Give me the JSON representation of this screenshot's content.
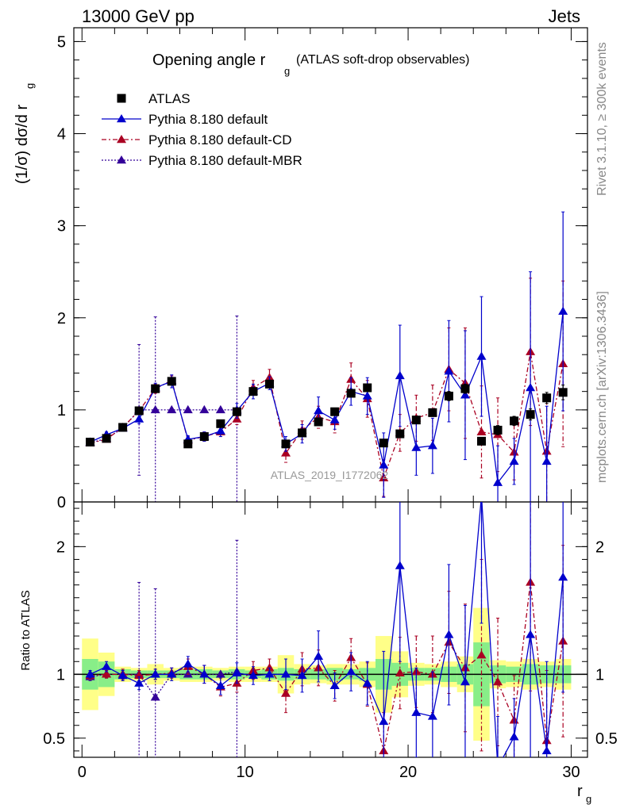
{
  "header": {
    "left": "13000 GeV pp",
    "right": "Jets"
  },
  "side_labels": {
    "rivet": "Rivet 3.1.10, ≥ 300k events",
    "mcplots": "mcplots.cern.ch [arXiv:1306.3436]"
  },
  "watermark": "ATLAS_2019_I1772062",
  "chart_data": [
    {
      "type": "scatter",
      "panel": "main",
      "title": "Opening angle r",
      "title_sub": "g",
      "title_note": "(ATLAS soft-drop observables)",
      "ylabel": "(1/σ) dσ/d r",
      "ylabel_sub": "g",
      "xlabel": "",
      "xlim": [
        -0.5,
        31
      ],
      "ylim": [
        0,
        5.15
      ],
      "x_ticks": [
        "0",
        "10",
        "20",
        "30"
      ],
      "y_ticks": [
        "0",
        "1",
        "2",
        "3",
        "4",
        "5"
      ],
      "legend": [
        {
          "label": "ATLAS",
          "marker": "square",
          "color": "#000000",
          "line": "none"
        },
        {
          "label": "Pythia 8.180 default",
          "marker": "triangle",
          "color": "#0000cc",
          "line": "solid"
        },
        {
          "label": "Pythia 8.180 default-CD",
          "marker": "triangle",
          "color": "#aa0022",
          "line": "dashdot"
        },
        {
          "label": "Pythia 8.180 default-MBR",
          "marker": "triangle",
          "color": "#330099",
          "line": "dotted"
        }
      ],
      "x": [
        0.5,
        1.5,
        2.5,
        3.5,
        4.5,
        5.5,
        6.5,
        7.5,
        8.5,
        9.5,
        10.5,
        11.5,
        12.5,
        13.5,
        14.5,
        15.5,
        16.5,
        17.5,
        18.5,
        19.5,
        20.5,
        21.5,
        22.5,
        23.5,
        24.5,
        25.5,
        26.5,
        27.5,
        28.5,
        29.5
      ],
      "series": [
        {
          "name": "ATLAS",
          "values": [
            0.65,
            0.69,
            0.81,
            0.99,
            1.23,
            1.31,
            0.63,
            0.71,
            0.85,
            0.98,
            1.2,
            1.28,
            0.63,
            0.75,
            0.87,
            0.98,
            1.18,
            1.24,
            0.64,
            0.74,
            0.89,
            0.97,
            1.15,
            1.23,
            0.66,
            0.78,
            0.88,
            0.95,
            1.13,
            1.19
          ],
          "err": [
            0.02,
            0.02,
            0.02,
            0.03,
            0.03,
            0.03,
            0.02,
            0.02,
            0.02,
            0.03,
            0.03,
            0.03,
            0.02,
            0.02,
            0.02,
            0.03,
            0.03,
            0.04,
            0.02,
            0.03,
            0.03,
            0.04,
            0.05,
            0.05,
            0.04,
            0.05,
            0.05,
            0.06,
            0.06,
            0.08
          ]
        },
        {
          "name": "Pythia 8.180 default",
          "values": [
            0.65,
            0.73,
            0.8,
            0.9,
            1.24,
            1.31,
            0.68,
            0.71,
            0.77,
            0.99,
            1.2,
            1.29,
            0.63,
            0.74,
            0.99,
            0.89,
            1.2,
            1.15,
            0.4,
            1.37,
            0.59,
            0.61,
            1.42,
            1.16,
            1.58,
            0.21,
            0.44,
            1.24,
            0.44,
            2.07
          ],
          "err": [
            0.02,
            0.03,
            0.03,
            0.05,
            0.05,
            0.07,
            0.04,
            0.05,
            0.06,
            0.08,
            0.08,
            0.07,
            0.08,
            0.1,
            0.15,
            0.1,
            0.15,
            0.2,
            0.35,
            0.55,
            0.3,
            0.3,
            0.55,
            0.7,
            0.65,
            0.4,
            0.25,
            1.26,
            0.6,
            1.08
          ]
        },
        {
          "name": "Pythia 8.180 default-CD",
          "values": [
            0.64,
            0.68,
            0.81,
            0.99,
            1.23,
            1.32,
            0.67,
            0.71,
            0.76,
            0.9,
            1.24,
            1.35,
            0.53,
            0.78,
            0.92,
            0.87,
            1.33,
            1.12,
            0.26,
            0.75,
            0.91,
            0.97,
            1.44,
            1.29,
            0.76,
            0.73,
            0.54,
            1.63,
            0.55,
            1.5
          ],
          "err": [
            0.02,
            0.02,
            0.03,
            0.04,
            0.05,
            0.05,
            0.04,
            0.05,
            0.05,
            0.06,
            0.08,
            0.09,
            0.1,
            0.1,
            0.12,
            0.12,
            0.18,
            0.2,
            0.2,
            0.2,
            0.25,
            0.3,
            0.45,
            0.6,
            0.5,
            0.4,
            0.3,
            0.8,
            0.6,
            0.9
          ]
        },
        {
          "name": "Pythia 8.180 default-MBR",
          "values": [
            0.64,
            0.69,
            0.8,
            1.0,
            1.0,
            1.0,
            1.0,
            1.0,
            1.0,
            1.0
          ],
          "x": [
            0.5,
            1.5,
            2.5,
            3.5,
            4.5,
            5.5,
            6.5,
            7.5,
            8.5,
            9.5
          ],
          "err": [
            0.02,
            0.02,
            0.03,
            0.71,
            1.01,
            0.0,
            0.0,
            0.0,
            0.0,
            1.02
          ]
        }
      ]
    },
    {
      "type": "scatter",
      "panel": "ratio",
      "ylabel": "Ratio to ATLAS",
      "xlabel": "r",
      "xlabel_sub": "g",
      "xlim": [
        -0.5,
        31
      ],
      "ylim": [
        0.35,
        2.35
      ],
      "x_ticks": [
        "0",
        "10",
        "20",
        "30"
      ],
      "y_ticks": [
        "0.5",
        "1",
        "2"
      ],
      "bands": {
        "inner_halfwidth": [
          0.12,
          0.1,
          0.04,
          0.03,
          0.03,
          0.03,
          0.04,
          0.04,
          0.03,
          0.04,
          0.03,
          0.04,
          0.05,
          0.04,
          0.04,
          0.05,
          0.04,
          0.05,
          0.12,
          0.09,
          0.05,
          0.05,
          0.06,
          0.08,
          0.25,
          0.07,
          0.06,
          0.08,
          0.07,
          0.07
        ],
        "outer_halfwidth": [
          0.28,
          0.17,
          0.06,
          0.05,
          0.08,
          0.05,
          0.06,
          0.06,
          0.05,
          0.06,
          0.06,
          0.06,
          0.15,
          0.08,
          0.07,
          0.08,
          0.08,
          0.1,
          0.3,
          0.18,
          0.09,
          0.08,
          0.1,
          0.14,
          0.52,
          0.11,
          0.1,
          0.12,
          0.1,
          0.12
        ],
        "inner_color": "#88ee88",
        "outer_color": "#ffff88"
      },
      "series": [
        {
          "name": "Pythia 8.180 default",
          "values": [
            1.0,
            1.06,
            0.99,
            0.93,
            1.0,
            1.0,
            1.08,
            1.0,
            0.91,
            1.01,
            0.99,
            1.0,
            1.0,
            0.99,
            1.14,
            0.91,
            1.02,
            0.93,
            0.63,
            1.85,
            0.7,
            0.67,
            1.31,
            0.94,
            2.4,
            0.27,
            0.51,
            1.31,
            0.4,
            1.76
          ],
          "err": [
            0.03,
            0.04,
            0.04,
            0.05,
            0.04,
            0.05,
            0.06,
            0.07,
            0.07,
            0.08,
            0.07,
            0.05,
            0.12,
            0.13,
            0.2,
            0.1,
            0.15,
            0.17,
            0.55,
            0.75,
            0.35,
            0.35,
            0.55,
            0.6,
            1.0,
            0.4,
            0.3,
            1.35,
            0.7,
            0.9
          ]
        },
        {
          "name": "Pythia 8.180 default-CD",
          "values": [
            0.99,
            1.0,
            1.0,
            0.99,
            1.0,
            1.01,
            1.06,
            1.0,
            0.9,
            0.93,
            1.03,
            1.05,
            0.85,
            1.04,
            1.05,
            0.91,
            1.13,
            0.92,
            0.4,
            1.01,
            1.02,
            1.0,
            1.25,
            1.05,
            1.15,
            0.94,
            0.64,
            1.72,
            0.48,
            1.26
          ],
          "err": [
            0.03,
            0.03,
            0.04,
            0.04,
            0.04,
            0.04,
            0.06,
            0.07,
            0.07,
            0.07,
            0.07,
            0.07,
            0.15,
            0.13,
            0.14,
            0.12,
            0.15,
            0.17,
            0.3,
            0.28,
            0.28,
            0.3,
            0.4,
            0.5,
            0.75,
            0.5,
            0.35,
            0.85,
            0.55,
            0.75
          ]
        },
        {
          "name": "Pythia 8.180 default-MBR",
          "values": [
            0.98,
            1.0,
            1.0,
            1.0,
            0.82,
            1.0,
            1.0,
            1.0,
            1.0,
            1.02
          ],
          "x": [
            0.5,
            1.5,
            2.5,
            3.5,
            4.5,
            5.5,
            6.5,
            7.5,
            8.5,
            9.5
          ],
          "err": [
            0.03,
            0.03,
            0.04,
            0.72,
            0.85,
            0.0,
            0.0,
            0.0,
            0.0,
            1.03
          ]
        }
      ]
    }
  ]
}
